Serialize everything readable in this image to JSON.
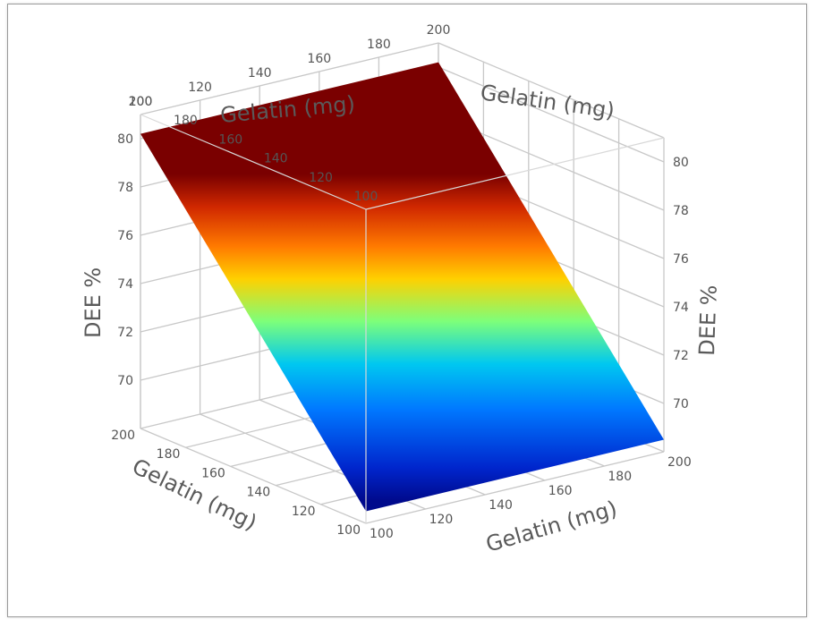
{
  "chart_data": {
    "type": "surface3d",
    "title": "",
    "axes": {
      "x": {
        "label": "Gelatin (mg)",
        "range": [
          100,
          200
        ],
        "ticks": [
          "100",
          "120",
          "140",
          "160",
          "180",
          "200"
        ]
      },
      "y": {
        "label": "Gelatin (mg)",
        "range": [
          100,
          200
        ],
        "ticks": [
          "100",
          "120",
          "140",
          "160",
          "180",
          "200"
        ]
      },
      "z": {
        "label": "DEE %",
        "range": [
          68,
          81
        ],
        "ticks": [
          "70",
          "72",
          "74",
          "76",
          "78",
          "80"
        ]
      }
    },
    "grid": true,
    "colormap": "jet",
    "surface_corners": [
      {
        "x": 100,
        "y": 100,
        "z": 68.5
      },
      {
        "x": 200,
        "y": 100,
        "z": 68.5
      },
      {
        "x": 100,
        "y": 200,
        "z": 80.2
      },
      {
        "x": 200,
        "y": 200,
        "z": 80.2
      }
    ]
  }
}
